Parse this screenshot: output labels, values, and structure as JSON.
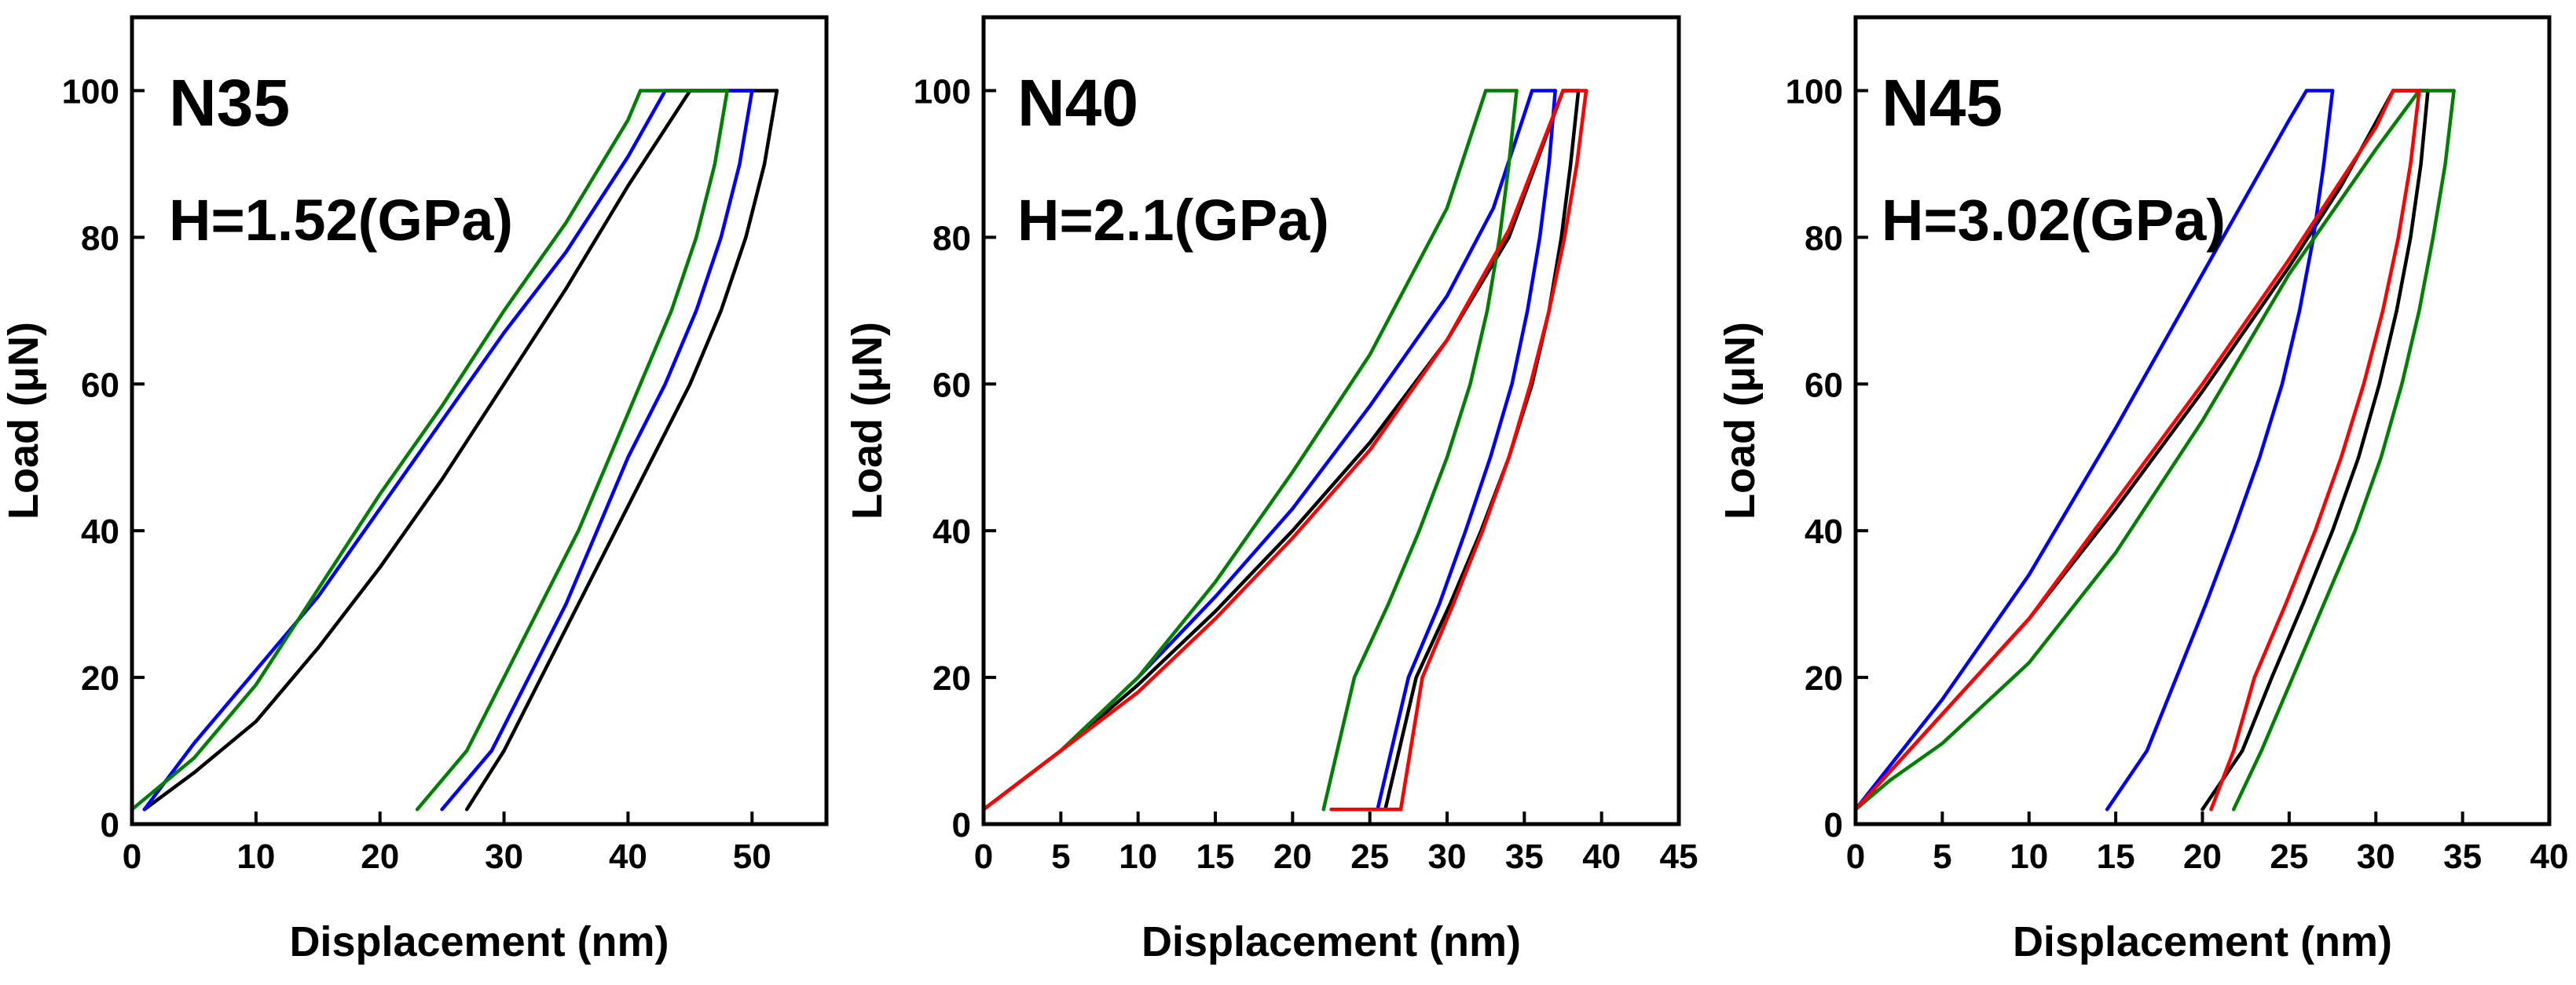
{
  "colors": {
    "black": "#000000",
    "blue": "#0000ff",
    "green": "#008000",
    "red": "#ff0000"
  },
  "chart_data": [
    {
      "type": "line",
      "title": "N35",
      "annotation": "H=1.52(GPa)",
      "xlabel": "Displacement (nm)",
      "ylabel": "Load (μN)",
      "xlim": [
        0,
        56
      ],
      "ylim": [
        0,
        110
      ],
      "xticks": [
        0,
        10,
        20,
        30,
        40,
        50
      ],
      "yticks": [
        0,
        20,
        40,
        60,
        80,
        100
      ],
      "series": [
        {
          "name": "black",
          "color": "#000000",
          "load": {
            "x": [
              1,
              5,
              10,
              15,
              20,
              25,
              30,
              35,
              40,
              45
            ],
            "y": [
              2,
              7,
              14,
              24,
              35,
              47,
              60,
              73,
              87,
              100
            ]
          },
          "hold": {
            "x": [
              45,
              52
            ],
            "y": [
              100,
              100
            ]
          },
          "unload": {
            "x": [
              52,
              51,
              49.5,
              47.5,
              45,
              42,
              39,
              36,
              33,
              30,
              27
            ],
            "y": [
              100,
              90,
              80,
              70,
              60,
              50,
              40,
              30,
              20,
              10,
              2
            ]
          }
        },
        {
          "name": "blue",
          "color": "#0000ff",
          "load": {
            "x": [
              1,
              5,
              10,
              15,
              20,
              25,
              30,
              35,
              40,
              43
            ],
            "y": [
              2,
              11,
              21,
              31,
              43,
              55,
              67,
              78,
              91,
              100
            ]
          },
          "hold": {
            "x": [
              43,
              50
            ],
            "y": [
              100,
              100
            ]
          },
          "unload": {
            "x": [
              50,
              49,
              47.5,
              45.5,
              43,
              40,
              37.5,
              35,
              32,
              29,
              25
            ],
            "y": [
              100,
              90,
              80,
              70,
              60,
              50,
              40,
              30,
              20,
              10,
              2
            ]
          }
        },
        {
          "name": "green",
          "color": "#008000",
          "load": {
            "x": [
              0,
              5,
              10,
              15,
              20,
              25,
              30,
              35,
              40,
              41
            ],
            "y": [
              2,
              9,
              19,
              32,
              45,
              57,
              70,
              82,
              96,
              100
            ]
          },
          "hold": {
            "x": [
              41,
              48
            ],
            "y": [
              100,
              100
            ]
          },
          "unload": {
            "x": [
              48,
              47,
              45.5,
              43.5,
              41,
              38.5,
              36,
              33,
              30,
              27,
              23
            ],
            "y": [
              100,
              90,
              80,
              70,
              60,
              50,
              40,
              30,
              20,
              10,
              2
            ]
          }
        }
      ]
    },
    {
      "type": "line",
      "title": "N40",
      "annotation": "H=2.1(GPa)",
      "xlabel": "Displacement (nm)",
      "ylabel": "Load (μN)",
      "xlim": [
        0,
        45
      ],
      "ylim": [
        0,
        110
      ],
      "xticks": [
        0,
        5,
        10,
        15,
        20,
        25,
        30,
        35,
        40,
        45
      ],
      "yticks": [
        0,
        20,
        40,
        60,
        80,
        100
      ],
      "series": [
        {
          "name": "black",
          "color": "#000000",
          "load": {
            "x": [
              0,
              5,
              10,
              15,
              20,
              25,
              30,
              34,
              37.5
            ],
            "y": [
              2,
              10,
              19,
              29,
              40,
              52,
              66,
              80,
              100
            ]
          },
          "hold": {
            "x": [
              37.5,
              38.5
            ],
            "y": [
              100,
              100
            ]
          },
          "unload": {
            "x": [
              38.5,
              38,
              37.4,
              36.6,
              35.5,
              34,
              32.2,
              30.2,
              28,
              26
            ],
            "y": [
              100,
              90,
              80,
              70,
              60,
              50,
              40,
              30,
              20,
              2
            ]
          }
        },
        {
          "name": "blue",
          "color": "#0000ff",
          "load": {
            "x": [
              0,
              5,
              10,
              15,
              20,
              25,
              30,
              33,
              35.5
            ],
            "y": [
              2,
              10,
              20,
              31,
              43,
              57,
              72,
              84,
              100
            ]
          },
          "hold": {
            "x": [
              35.5,
              37
            ],
            "y": [
              100,
              100
            ]
          },
          "unload": {
            "x": [
              37,
              36.6,
              36,
              35.2,
              34.2,
              32.8,
              31.2,
              29.5,
              27.5,
              25.5
            ],
            "y": [
              100,
              90,
              80,
              70,
              60,
              50,
              40,
              30,
              20,
              2
            ]
          }
        },
        {
          "name": "green",
          "color": "#008000",
          "load": {
            "x": [
              0,
              5,
              10,
              15,
              20,
              25,
              30,
              32.5
            ],
            "y": [
              2,
              10,
              20,
              33,
              48,
              64,
              84,
              100
            ]
          },
          "hold": {
            "x": [
              32.5,
              34.5
            ],
            "y": [
              100,
              100
            ]
          },
          "unload": {
            "x": [
              34.5,
              34,
              33.4,
              32.6,
              31.5,
              30,
              28.2,
              26.2,
              24,
              22
            ],
            "y": [
              100,
              90,
              80,
              70,
              60,
              50,
              40,
              30,
              20,
              2
            ]
          }
        },
        {
          "name": "red",
          "color": "#ff0000",
          "load": {
            "x": [
              0,
              5,
              10,
              15,
              20,
              25,
              30,
              34,
              37.5
            ],
            "y": [
              2,
              10,
              18,
              28,
              39,
              51,
              66,
              81,
              100
            ]
          },
          "hold": {
            "x": [
              37.5,
              39
            ],
            "y": [
              100,
              100
            ]
          },
          "unload": {
            "x": [
              39,
              38.4,
              37.6,
              36.6,
              35.4,
              34,
              32.3,
              30.4,
              28.4,
              27,
              22.5
            ],
            "y": [
              100,
              90,
              80,
              70,
              60,
              50,
              40,
              30,
              20,
              2,
              2
            ]
          }
        }
      ]
    },
    {
      "type": "line",
      "title": "N45",
      "annotation": "H=3.02(GPa)",
      "xlabel": "Displacement (nm)",
      "ylabel": "Load (μN)",
      "xlim": [
        0,
        40
      ],
      "ylim": [
        0,
        110
      ],
      "xticks": [
        0,
        5,
        10,
        15,
        20,
        25,
        30,
        35,
        40
      ],
      "yticks": [
        0,
        20,
        40,
        60,
        80,
        100
      ],
      "series": [
        {
          "name": "black",
          "color": "#000000",
          "load": {
            "x": [
              0,
              5,
              10,
              15,
              20,
              25,
              28,
              31
            ],
            "y": [
              2,
              15,
              28,
              43,
              59,
              76,
              87,
              100
            ]
          },
          "hold": {
            "x": [
              31,
              33
            ],
            "y": [
              100,
              100
            ]
          },
          "unload": {
            "x": [
              33,
              32.6,
              32,
              31.2,
              30.2,
              29,
              27.5,
              25.8,
              24,
              22.3,
              20
            ],
            "y": [
              100,
              90,
              80,
              70,
              60,
              50,
              40,
              30,
              20,
              10,
              2
            ]
          }
        },
        {
          "name": "blue",
          "color": "#0000ff",
          "load": {
            "x": [
              0,
              5,
              10,
              15,
              20,
              25,
              26
            ],
            "y": [
              2,
              17,
              34,
              54,
              75,
              96,
              100
            ]
          },
          "hold": {
            "x": [
              26,
              27.5
            ],
            "y": [
              100,
              100
            ]
          },
          "unload": {
            "x": [
              27.5,
              27,
              26.4,
              25.6,
              24.6,
              23.3,
              21.8,
              20.2,
              18.5,
              16.8,
              14.5
            ],
            "y": [
              100,
              90,
              80,
              70,
              60,
              50,
              40,
              30,
              20,
              10,
              2
            ]
          }
        },
        {
          "name": "green",
          "color": "#008000",
          "load": {
            "x": [
              0,
              2,
              5,
              10,
              15,
              20,
              25,
              30,
              32.5
            ],
            "y": [
              2,
              6,
              11,
              22,
              37,
              55,
              75,
              92,
              100
            ]
          },
          "hold": {
            "x": [
              32.5,
              34.5
            ],
            "y": [
              100,
              100
            ]
          },
          "unload": {
            "x": [
              34.5,
              34,
              33.3,
              32.5,
              31.5,
              30.3,
              28.8,
              27,
              25.2,
              23.4,
              21.8
            ],
            "y": [
              100,
              90,
              80,
              70,
              60,
              50,
              40,
              30,
              20,
              10,
              2
            ]
          }
        },
        {
          "name": "red",
          "color": "#ff0000",
          "load": {
            "x": [
              0,
              5,
              10,
              15,
              20,
              25,
              30,
              31
            ],
            "y": [
              2,
              15,
              28,
              44,
              60,
              77,
              95,
              100
            ]
          },
          "hold": {
            "x": [
              31,
              32.5
            ],
            "y": [
              100,
              100
            ]
          },
          "unload": {
            "x": [
              32.5,
              32,
              31.3,
              30.4,
              29.3,
              28,
              26.5,
              24.8,
              23,
              21.8,
              20.5
            ],
            "y": [
              100,
              90,
              80,
              70,
              60,
              50,
              40,
              30,
              20,
              10,
              2
            ]
          }
        }
      ]
    }
  ]
}
